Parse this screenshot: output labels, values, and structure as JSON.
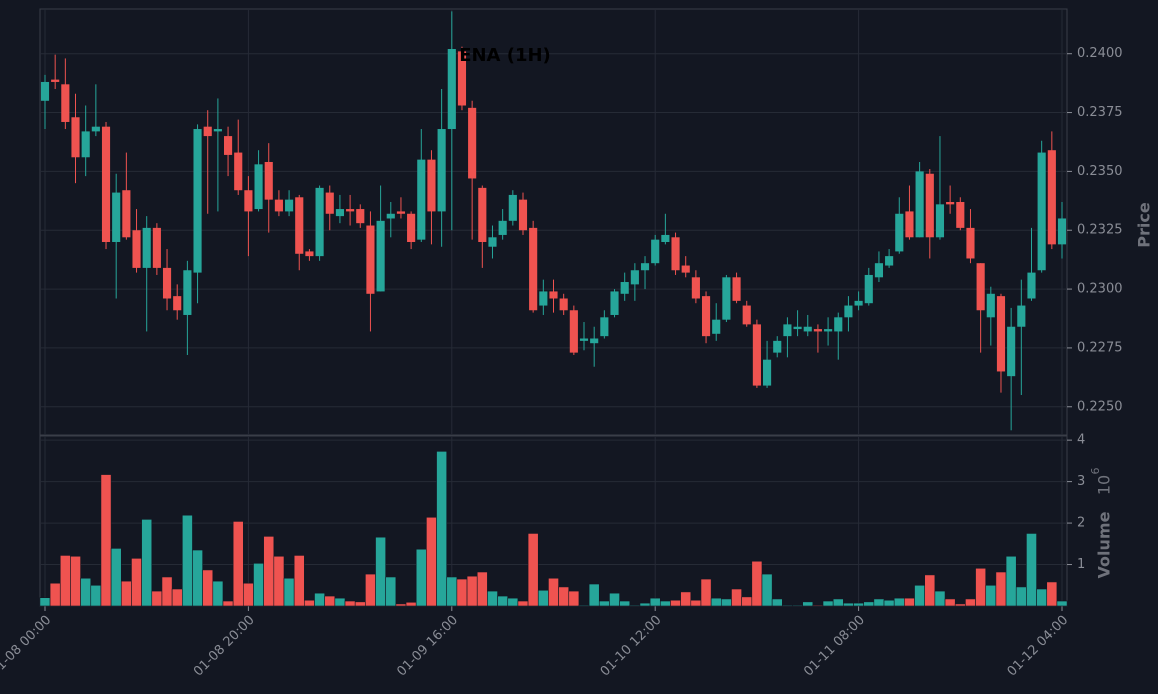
{
  "chart_data": {
    "type": "candlestick",
    "title": "ENA (1H)",
    "x": [
      "01-08 00:00",
      "01-08 01:00",
      "01-08 02:00",
      "01-08 03:00",
      "01-08 04:00",
      "01-08 05:00",
      "01-08 06:00",
      "01-08 07:00",
      "01-08 08:00",
      "01-08 09:00",
      "01-08 10:00",
      "01-08 11:00",
      "01-08 12:00",
      "01-08 13:00",
      "01-08 14:00",
      "01-08 15:00",
      "01-08 16:00",
      "01-08 17:00",
      "01-08 18:00",
      "01-08 19:00",
      "01-08 20:00",
      "01-08 21:00",
      "01-08 22:00",
      "01-08 23:00",
      "01-09 00:00",
      "01-09 01:00",
      "01-09 02:00",
      "01-09 03:00",
      "01-09 04:00",
      "01-09 05:00",
      "01-09 06:00",
      "01-09 07:00",
      "01-09 08:00",
      "01-09 09:00",
      "01-09 10:00",
      "01-09 11:00",
      "01-09 12:00",
      "01-09 13:00",
      "01-09 14:00",
      "01-09 15:00",
      "01-09 16:00",
      "01-09 17:00",
      "01-09 18:00",
      "01-09 19:00",
      "01-09 20:00",
      "01-09 21:00",
      "01-09 22:00",
      "01-09 23:00",
      "01-10 00:00",
      "01-10 01:00",
      "01-10 02:00",
      "01-10 03:00",
      "01-10 04:00",
      "01-10 05:00",
      "01-10 06:00",
      "01-10 07:00",
      "01-10 08:00",
      "01-10 09:00",
      "01-10 10:00",
      "01-10 11:00",
      "01-10 12:00",
      "01-10 13:00",
      "01-10 14:00",
      "01-10 15:00",
      "01-10 16:00",
      "01-10 17:00",
      "01-10 18:00",
      "01-10 19:00",
      "01-10 20:00",
      "01-10 21:00",
      "01-10 22:00",
      "01-10 23:00",
      "01-11 00:00",
      "01-11 01:00",
      "01-11 02:00",
      "01-11 03:00",
      "01-11 04:00",
      "01-11 05:00",
      "01-11 06:00",
      "01-11 07:00",
      "01-11 08:00",
      "01-11 09:00",
      "01-11 10:00",
      "01-11 11:00",
      "01-11 12:00",
      "01-11 13:00",
      "01-11 14:00",
      "01-11 15:00",
      "01-11 16:00",
      "01-11 17:00",
      "01-11 18:00",
      "01-11 19:00",
      "01-11 20:00",
      "01-11 21:00",
      "01-11 22:00",
      "01-11 23:00",
      "01-12 00:00",
      "01-12 01:00",
      "01-12 02:00",
      "01-12 03:00",
      "01-12 04:00"
    ],
    "open": [
      0.238,
      0.2389,
      0.2387,
      0.2373,
      0.2356,
      0.2367,
      0.2369,
      0.232,
      0.2342,
      0.2325,
      0.2309,
      0.2326,
      0.2309,
      0.2297,
      0.2289,
      0.2307,
      0.2369,
      0.2367,
      0.2365,
      0.2358,
      0.2342,
      0.2334,
      0.2354,
      0.2338,
      0.2333,
      0.2339,
      0.2316,
      0.2314,
      0.2341,
      0.2331,
      0.2334,
      0.2334,
      0.2327,
      0.2299,
      0.233,
      0.2333,
      0.2332,
      0.2321,
      0.2355,
      0.2333,
      0.2368,
      0.2401,
      0.2377,
      0.2343,
      0.2318,
      0.2323,
      0.2329,
      0.2338,
      0.2326,
      0.2293,
      0.2299,
      0.2296,
      0.2291,
      0.2278,
      0.2277,
      0.228,
      0.2289,
      0.2298,
      0.2302,
      0.2308,
      0.2311,
      0.232,
      0.2322,
      0.231,
      0.2305,
      0.2297,
      0.2281,
      0.2287,
      0.2305,
      0.2293,
      0.2285,
      0.2259,
      0.2273,
      0.228,
      0.2283,
      0.2282,
      0.2283,
      0.2282,
      0.2282,
      0.2288,
      0.2293,
      0.2294,
      0.2305,
      0.231,
      0.2316,
      0.2333,
      0.2322,
      0.2349,
      0.2322,
      0.2337,
      0.2337,
      0.2326,
      0.2311,
      0.2288,
      0.2297,
      0.2263,
      0.2284,
      0.2296,
      0.2308,
      0.2359,
      0.2319
    ],
    "high": [
      0.2391,
      0.23996,
      0.2398,
      0.2383,
      0.2378,
      0.2387,
      0.2371,
      0.2349,
      0.2358,
      0.2334,
      0.2331,
      0.2328,
      0.2317,
      0.2302,
      0.2312,
      0.237,
      0.2376,
      0.2381,
      0.2369,
      0.2372,
      0.2348,
      0.2359,
      0.2362,
      0.2342,
      0.2342,
      0.234,
      0.2317,
      0.2344,
      0.2344,
      0.234,
      0.234,
      0.2336,
      0.2333,
      0.2344,
      0.2337,
      0.2339,
      0.2333,
      0.2368,
      0.2359,
      0.2385,
      0.2418,
      0.2403,
      0.238,
      0.2344,
      0.2327,
      0.2334,
      0.2342,
      0.2341,
      0.2329,
      0.2304,
      0.2304,
      0.2298,
      0.2293,
      0.2286,
      0.2284,
      0.2291,
      0.23,
      0.2307,
      0.2311,
      0.2314,
      0.2323,
      0.2332,
      0.2324,
      0.2314,
      0.2308,
      0.2299,
      0.2294,
      0.2306,
      0.2307,
      0.2295,
      0.2287,
      0.2278,
      0.228,
      0.2288,
      0.2291,
      0.2289,
      0.2285,
      0.2288,
      0.229,
      0.2297,
      0.2299,
      0.2309,
      0.2316,
      0.2317,
      0.2339,
      0.2344,
      0.2354,
      0.2351,
      0.2365,
      0.2344,
      0.2339,
      0.2334,
      0.2311,
      0.2301,
      0.2298,
      0.2292,
      0.2304,
      0.2326,
      0.2363,
      0.2367,
      0.2337
    ],
    "low": [
      0.2368,
      0.2385,
      0.2368,
      0.2345,
      0.2348,
      0.2365,
      0.2317,
      0.2296,
      0.2321,
      0.2307,
      0.2282,
      0.2306,
      0.2291,
      0.2287,
      0.2272,
      0.2294,
      0.2332,
      0.2333,
      0.2348,
      0.234,
      0.2314,
      0.2333,
      0.2324,
      0.2331,
      0.2331,
      0.2308,
      0.2312,
      0.2312,
      0.2325,
      0.2328,
      0.2327,
      0.2326,
      0.2282,
      0.2299,
      0.2322,
      0.233,
      0.2317,
      0.232,
      0.2319,
      0.2318,
      0.2325,
      0.2376,
      0.2321,
      0.2309,
      0.2313,
      0.2321,
      0.2327,
      0.2323,
      0.229,
      0.2289,
      0.229,
      0.2289,
      0.2272,
      0.2274,
      0.2267,
      0.2279,
      0.2288,
      0.2295,
      0.2295,
      0.23,
      0.231,
      0.2319,
      0.2306,
      0.2305,
      0.2294,
      0.2277,
      0.2278,
      0.2286,
      0.2294,
      0.2284,
      0.2258,
      0.2258,
      0.2271,
      0.2271,
      0.228,
      0.228,
      0.2273,
      0.2276,
      0.227,
      0.2282,
      0.2291,
      0.2293,
      0.2303,
      0.2309,
      0.2315,
      0.2321,
      0.2322,
      0.2313,
      0.2321,
      0.2332,
      0.2325,
      0.2311,
      0.2273,
      0.2276,
      0.2256,
      0.224,
      0.2255,
      0.2295,
      0.2307,
      0.2317,
      0.2313
    ],
    "close": [
      0.2388,
      0.2388,
      0.2371,
      0.2356,
      0.2367,
      0.2369,
      0.232,
      0.2341,
      0.2322,
      0.2309,
      0.2326,
      0.2309,
      0.2296,
      0.2291,
      0.2308,
      0.2368,
      0.2365,
      0.2368,
      0.2357,
      0.2342,
      0.2333,
      0.2353,
      0.2338,
      0.2333,
      0.2338,
      0.2315,
      0.2314,
      0.2343,
      0.2332,
      0.2334,
      0.2333,
      0.2328,
      0.2298,
      0.2329,
      0.2332,
      0.2332,
      0.232,
      0.2355,
      0.2333,
      0.2368,
      0.2402,
      0.2378,
      0.2347,
      0.232,
      0.2322,
      0.2329,
      0.234,
      0.2325,
      0.2291,
      0.2299,
      0.2296,
      0.2291,
      0.2273,
      0.2279,
      0.2279,
      0.2288,
      0.2299,
      0.2303,
      0.2308,
      0.2311,
      0.2321,
      0.2323,
      0.2308,
      0.2307,
      0.2296,
      0.228,
      0.2287,
      0.2305,
      0.2295,
      0.2285,
      0.2259,
      0.227,
      0.2278,
      0.2285,
      0.2284,
      0.2284,
      0.2282,
      0.2283,
      0.2288,
      0.2293,
      0.2295,
      0.2306,
      0.2311,
      0.2314,
      0.2332,
      0.2322,
      0.235,
      0.2322,
      0.2336,
      0.2336,
      0.2326,
      0.2313,
      0.2291,
      0.2298,
      0.2265,
      0.2284,
      0.2293,
      0.2307,
      0.2358,
      0.2319,
      0.233
    ],
    "up_color": "#26a69a",
    "down_color": "#ef5350",
    "ylim": [
      0.2238,
      0.2419
    ],
    "yticks": [
      {
        "value": 0.225,
        "label": "0.2250"
      },
      {
        "value": 0.2275,
        "label": "0.2275"
      },
      {
        "value": 0.23,
        "label": "0.2300"
      },
      {
        "value": 0.2325,
        "label": "0.2325"
      },
      {
        "value": 0.235,
        "label": "0.2350"
      },
      {
        "value": 0.2375,
        "label": "0.2375"
      },
      {
        "value": 0.24,
        "label": "0.2400"
      }
    ],
    "ylabel": "Price",
    "xticks": [
      "01-08 00:00",
      "01-08 20:00",
      "01-09 16:00",
      "01-10 12:00",
      "01-11 08:00",
      "01-12 04:00"
    ],
    "grid": true,
    "volume": {
      "ylabel": "Volume",
      "offset_label": {
        "base": "10",
        "exponent": "6"
      },
      "values": [
        0.2,
        0.55,
        1.22,
        1.2,
        0.67,
        0.5,
        3.17,
        1.39,
        0.6,
        1.15,
        2.09,
        0.36,
        0.7,
        0.41,
        2.19,
        1.35,
        0.87,
        0.6,
        0.12,
        2.04,
        0.55,
        1.03,
        1.68,
        1.2,
        0.67,
        1.22,
        0.14,
        0.31,
        0.24,
        0.19,
        0.12,
        0.1,
        0.77,
        1.66,
        0.7,
        0.05,
        0.09,
        1.37,
        2.14,
        3.73,
        0.7,
        0.65,
        0.72,
        0.82,
        0.36,
        0.24,
        0.19,
        0.12,
        1.75,
        0.38,
        0.67,
        0.46,
        0.36,
        0.02,
        0.53,
        0.12,
        0.31,
        0.12,
        0.02,
        0.07,
        0.19,
        0.12,
        0.14,
        0.34,
        0.14,
        0.65,
        0.19,
        0.17,
        0.41,
        0.22,
        1.08,
        0.77,
        0.17,
        0.02,
        0.02,
        0.1,
        0.02,
        0.12,
        0.17,
        0.07,
        0.07,
        0.1,
        0.17,
        0.14,
        0.19,
        0.19,
        0.5,
        0.75,
        0.36,
        0.17,
        0.05,
        0.17,
        0.91,
        0.5,
        0.82,
        1.2,
        0.46,
        1.75,
        0.41,
        0.58,
        0.12
      ],
      "ylim": [
        0,
        4.1
      ],
      "yticks": [
        1,
        2,
        3,
        4
      ]
    }
  }
}
